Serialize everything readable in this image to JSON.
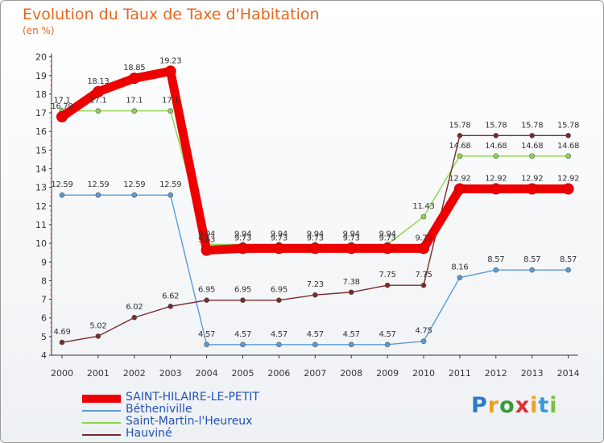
{
  "chart_data": {
    "type": "line",
    "title": "Evolution du Taux de Taxe d'Habitation",
    "subtitle": "(en %)",
    "x": [
      "2000",
      "2001",
      "2002",
      "2003",
      "2004",
      "2005",
      "2006",
      "2007",
      "2008",
      "2009",
      "2010",
      "2011",
      "2012",
      "2013",
      "2014"
    ],
    "ylim": [
      4,
      20
    ],
    "yticks": [
      4,
      5,
      6,
      7,
      8,
      9,
      10,
      11,
      12,
      13,
      14,
      15,
      16,
      17,
      18,
      19,
      20
    ],
    "grid": false,
    "legend_position": "bottom-left",
    "series": [
      {
        "name": "SAINT-HILAIRE-LE-PETIT",
        "color": "#ee0000",
        "bold": true,
        "values": [
          16.79,
          18.13,
          18.85,
          19.23,
          9.63,
          9.73,
          9.73,
          9.73,
          9.73,
          9.73,
          9.73,
          12.92,
          12.92,
          12.92,
          12.92
        ],
        "labels": [
          "16.79",
          "18.13",
          "18.85",
          "19.23",
          "9.63",
          "9.73",
          "9.73",
          "9.73",
          "9.73",
          "9.73",
          "9.73",
          "12.92",
          "12.92",
          "12.92",
          "12.92"
        ]
      },
      {
        "name": "Bétheniville",
        "color": "#5a9bd4",
        "bold": false,
        "values": [
          12.59,
          12.59,
          12.59,
          12.59,
          4.57,
          4.57,
          4.57,
          4.57,
          4.57,
          4.57,
          4.75,
          8.16,
          8.57,
          8.57,
          8.57
        ],
        "labels": [
          "12.59",
          "12.59",
          "12.59",
          "12.59",
          "4.57",
          "4.57",
          "4.57",
          "4.57",
          "4.57",
          "4.57",
          "4.75",
          "8.16",
          "8.57",
          "8.57",
          "8.57"
        ]
      },
      {
        "name": "Saint-Martin-l'Heureux",
        "color": "#8ed54b",
        "bold": false,
        "values": [
          17.1,
          17.1,
          17.1,
          17.1,
          9.94,
          9.94,
          9.94,
          9.94,
          9.94,
          9.94,
          11.43,
          14.68,
          14.68,
          14.68,
          14.68
        ],
        "labels": [
          "17.1",
          "17.1",
          "17.1",
          "17.1",
          "9.94",
          "9.94",
          "9.94",
          "9.94",
          "9.94",
          "9.94",
          "11.43",
          "14.68",
          "14.68",
          "14.68",
          "14.68"
        ]
      },
      {
        "name": "Hauviné",
        "color": "#7a2a2a",
        "bold": false,
        "values": [
          4.69,
          5.02,
          6.02,
          6.62,
          6.95,
          6.95,
          6.95,
          7.23,
          7.38,
          7.75,
          7.75,
          15.78,
          15.78,
          15.78,
          15.78
        ],
        "labels": [
          "4.69",
          "5.02",
          "6.02",
          "6.62",
          "6.95",
          "6.95",
          "6.95",
          "7.23",
          "7.38",
          "7.75",
          "7.75",
          "15.78",
          "15.78",
          "15.78",
          "15.78"
        ]
      }
    ]
  },
  "logo": {
    "letters": [
      {
        "ch": "P",
        "color": "#2d78c8"
      },
      {
        "ch": "r",
        "color": "#f0a020"
      },
      {
        "ch": "o",
        "color": "#3a9a3a"
      },
      {
        "ch": "x",
        "color": "#e03030"
      },
      {
        "ch": "i",
        "color": "#f0a020"
      },
      {
        "ch": "t",
        "color": "#3a9ad8"
      },
      {
        "ch": "i",
        "color": "#7ac040"
      }
    ]
  }
}
